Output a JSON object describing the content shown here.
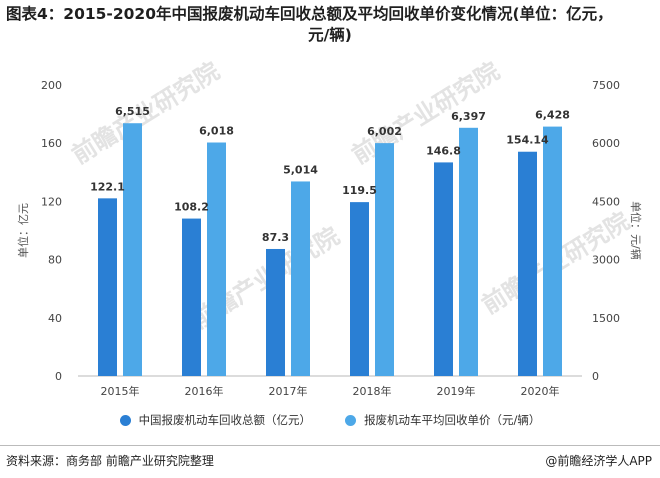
{
  "title_line1": "图表4：2015-2020年中国报废机动车回收总额及平均回收单价变化情况(单位：亿元，",
  "title_line2": "元/辆)",
  "source": "资料来源：商务部 前瞻产业研究院整理",
  "brand": "@前瞻经济学人APP",
  "watermark": "前瞻产业研究院",
  "colors": {
    "series1": "#2a7fd4",
    "series2": "#4da8e8"
  },
  "chart_data": {
    "type": "bar",
    "categories": [
      "2015年",
      "2016年",
      "2017年",
      "2018年",
      "2019年",
      "2020年"
    ],
    "series": [
      {
        "name": "中国报废机动车回收总额（亿元）",
        "axis": "left",
        "values": [
          122.1,
          108.2,
          87.3,
          119.5,
          146.8,
          154.14
        ],
        "labels": [
          "122.1",
          "108.2",
          "87.3",
          "119.5",
          "146.8",
          "154.14"
        ]
      },
      {
        "name": "报废机动车平均回收单价（元/辆）",
        "axis": "right",
        "values": [
          6515,
          6018,
          5014,
          6002,
          6397,
          6428
        ],
        "labels": [
          "6,515",
          "6,018",
          "5,014",
          "6,002",
          "6,397",
          "6,428"
        ]
      }
    ],
    "ylabel_left": "单位：亿元",
    "ylabel_right": "单位：元/辆",
    "ylim_left": [
      0,
      200
    ],
    "yticks_left": [
      0,
      40,
      80,
      120,
      160,
      200
    ],
    "ylim_right": [
      0,
      7500
    ],
    "yticks_right": [
      0,
      1500,
      3000,
      4500,
      6000,
      7500
    ],
    "grid": false,
    "legend": "bottom"
  }
}
